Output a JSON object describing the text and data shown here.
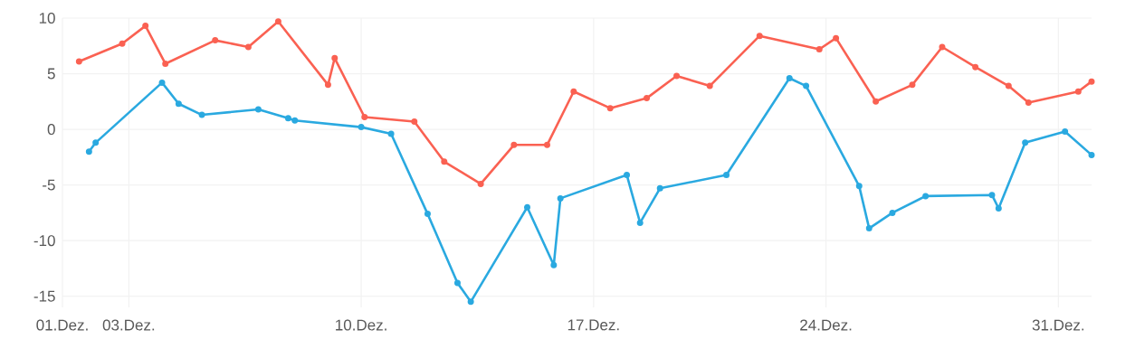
{
  "chart_data": {
    "type": "line",
    "x": [
      1.5,
      2.8,
      3.5,
      4.1,
      5.6,
      6.6,
      7.5,
      9.0,
      9.2,
      10.1,
      11.6,
      12.5,
      13.6,
      14.6,
      15.6,
      16.4,
      17.5,
      18.6,
      19.5,
      20.5,
      22.0,
      23.8,
      24.3,
      25.5,
      26.6,
      27.5,
      28.5,
      29.5,
      30.1,
      31.6,
      32.0
    ],
    "series": [
      {
        "color": "#fa6152",
        "values": [
          6.1,
          7.7,
          9.3,
          5.9,
          8.0,
          7.4,
          9.7,
          4.0,
          6.4,
          1.1,
          0.7,
          -2.9,
          -4.9,
          -1.4,
          -1.4,
          3.4,
          1.9,
          2.8,
          4.8,
          3.9,
          8.4,
          7.2,
          8.2,
          2.5,
          4.0,
          7.4,
          5.6,
          3.9,
          2.4,
          3.4,
          4.3
        ]
      },
      {
        "color": "#2aa9e0",
        "x": [
          1.8,
          2.0,
          4.0,
          4.5,
          5.2,
          6.9,
          7.8,
          8.0,
          10.0,
          10.9,
          12.0,
          12.9,
          13.3,
          15.0,
          15.8,
          16.0,
          18.0,
          18.4,
          19.0,
          21.0,
          22.9,
          23.4,
          25.0,
          25.3,
          26.0,
          27.0,
          29.0,
          29.2,
          30.0,
          31.2,
          32.0
        ],
        "values": [
          -2.0,
          -1.2,
          4.2,
          2.3,
          1.3,
          1.8,
          1.0,
          0.8,
          0.2,
          -0.4,
          -7.6,
          -13.8,
          -15.5,
          -7.0,
          -12.2,
          -6.2,
          -4.1,
          -8.4,
          -5.3,
          -4.1,
          4.6,
          3.9,
          -5.1,
          -8.9,
          -7.5,
          -6.0,
          -5.9,
          -7.1,
          -1.2,
          -0.2,
          -2.3
        ]
      }
    ],
    "xlim": [
      1,
      32
    ],
    "xticks": [
      {
        "value": 1,
        "label": "01.Dez."
      },
      {
        "value": 3,
        "label": "03.Dez."
      },
      {
        "value": 10,
        "label": "10.Dez."
      },
      {
        "value": 17,
        "label": "17.Dez."
      },
      {
        "value": 24,
        "label": "24.Dez."
      },
      {
        "value": 31,
        "label": "31.Dez."
      }
    ],
    "ylim": [
      -16,
      10
    ],
    "yticks": [
      -15,
      -10,
      -5,
      0,
      5,
      10
    ],
    "grid": true,
    "marker": "circle",
    "line_style": "solid"
  }
}
